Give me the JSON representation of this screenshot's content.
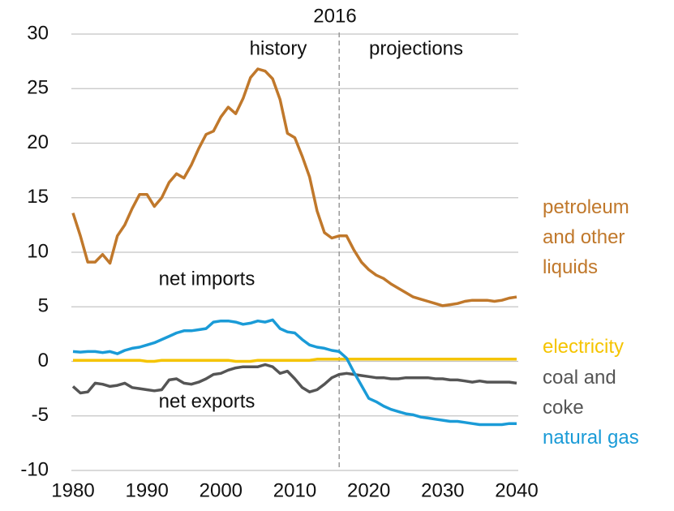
{
  "chart_data": {
    "type": "line",
    "x": [
      1980,
      1981,
      1982,
      1983,
      1984,
      1985,
      1986,
      1987,
      1988,
      1989,
      1990,
      1991,
      1992,
      1993,
      1994,
      1995,
      1996,
      1997,
      1998,
      1999,
      2000,
      2001,
      2002,
      2003,
      2004,
      2005,
      2006,
      2007,
      2008,
      2009,
      2010,
      2011,
      2012,
      2013,
      2014,
      2015,
      2016,
      2017,
      2018,
      2019,
      2020,
      2021,
      2022,
      2023,
      2024,
      2025,
      2026,
      2027,
      2028,
      2029,
      2030,
      2031,
      2032,
      2033,
      2034,
      2035,
      2036,
      2037,
      2038,
      2039,
      2040
    ],
    "series": [
      {
        "name": "petroleum and other liquids",
        "color": "#c0782b",
        "values": [
          13.6,
          11.5,
          9.1,
          9.1,
          9.8,
          9.0,
          11.5,
          12.5,
          14.0,
          15.3,
          15.3,
          14.2,
          15.0,
          16.4,
          17.2,
          16.8,
          18.0,
          19.5,
          20.8,
          21.1,
          22.4,
          23.3,
          22.7,
          24.1,
          26.0,
          26.8,
          26.6,
          25.9,
          24.0,
          20.9,
          20.5,
          18.8,
          16.9,
          13.8,
          11.8,
          11.3,
          11.5,
          11.5,
          10.2,
          9.1,
          8.4,
          7.9,
          7.6,
          7.1,
          6.7,
          6.3,
          5.9,
          5.7,
          5.5,
          5.3,
          5.1,
          5.2,
          5.3,
          5.5,
          5.6,
          5.6,
          5.6,
          5.5,
          5.6,
          5.8,
          5.9
        ]
      },
      {
        "name": "electricity",
        "color": "#f5c400",
        "values": [
          0.1,
          0.1,
          0.1,
          0.1,
          0.1,
          0.1,
          0.1,
          0.1,
          0.1,
          0.1,
          0.0,
          0.0,
          0.1,
          0.1,
          0.1,
          0.1,
          0.1,
          0.1,
          0.1,
          0.1,
          0.1,
          0.1,
          0.0,
          0.0,
          0.0,
          0.1,
          0.1,
          0.1,
          0.1,
          0.1,
          0.1,
          0.1,
          0.1,
          0.2,
          0.2,
          0.2,
          0.2,
          0.2,
          0.2,
          0.2,
          0.2,
          0.2,
          0.2,
          0.2,
          0.2,
          0.2,
          0.2,
          0.2,
          0.2,
          0.2,
          0.2,
          0.2,
          0.2,
          0.2,
          0.2,
          0.2,
          0.2,
          0.2,
          0.2,
          0.2,
          0.2
        ]
      },
      {
        "name": "coal and coke",
        "color": "#555555",
        "values": [
          -2.3,
          -2.9,
          -2.8,
          -2.0,
          -2.1,
          -2.3,
          -2.2,
          -2.0,
          -2.4,
          -2.5,
          -2.6,
          -2.7,
          -2.6,
          -1.7,
          -1.6,
          -2.0,
          -2.1,
          -1.9,
          -1.6,
          -1.2,
          -1.1,
          -0.8,
          -0.6,
          -0.5,
          -0.5,
          -0.5,
          -0.3,
          -0.5,
          -1.1,
          -0.9,
          -1.6,
          -2.4,
          -2.8,
          -2.6,
          -2.1,
          -1.5,
          -1.2,
          -1.1,
          -1.2,
          -1.3,
          -1.4,
          -1.5,
          -1.5,
          -1.6,
          -1.6,
          -1.5,
          -1.5,
          -1.5,
          -1.5,
          -1.6,
          -1.6,
          -1.7,
          -1.7,
          -1.8,
          -1.9,
          -1.8,
          -1.9,
          -1.9,
          -1.9,
          -1.9,
          -2.0
        ]
      },
      {
        "name": "natural gas",
        "color": "#1a9bd7",
        "values": [
          0.9,
          0.85,
          0.9,
          0.9,
          0.8,
          0.9,
          0.7,
          1.0,
          1.2,
          1.3,
          1.5,
          1.7,
          2.0,
          2.3,
          2.6,
          2.8,
          2.8,
          2.9,
          3.0,
          3.6,
          3.7,
          3.7,
          3.6,
          3.4,
          3.5,
          3.7,
          3.6,
          3.8,
          3.0,
          2.7,
          2.6,
          2.0,
          1.5,
          1.3,
          1.2,
          1.0,
          0.9,
          0.3,
          -1.0,
          -2.2,
          -3.4,
          -3.7,
          -4.1,
          -4.4,
          -4.6,
          -4.8,
          -4.9,
          -5.1,
          -5.2,
          -5.3,
          -5.4,
          -5.5,
          -5.5,
          -5.6,
          -5.7,
          -5.8,
          -5.8,
          -5.8,
          -5.8,
          -5.7,
          -5.7
        ]
      }
    ],
    "xlim": [
      1980,
      2040
    ],
    "xticks": [
      1980,
      1990,
      2000,
      2010,
      2020,
      2030,
      2040
    ],
    "ylim": [
      -10,
      30
    ],
    "yticks": [
      -10,
      -5,
      0,
      5,
      10,
      15,
      20,
      25,
      30
    ],
    "grid": true,
    "divider": 2016,
    "annotations": [
      "history",
      "projections",
      "net imports",
      "net exports"
    ]
  }
}
